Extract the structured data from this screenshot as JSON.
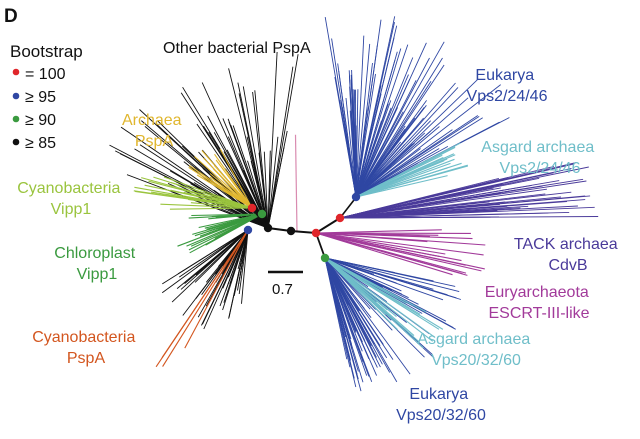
{
  "panel_letter": "D",
  "legend": {
    "title": "Bootstrap",
    "items": [
      {
        "label": "= 100",
        "color": "#e0262b"
      },
      {
        "label": "≥ 95",
        "color": "#2f47a3"
      },
      {
        "label": "≥ 90",
        "color": "#3a9a3f"
      },
      {
        "label": "≥ 85",
        "color": "#111111"
      }
    ]
  },
  "scale_bar": {
    "label": "0.7"
  },
  "clades": {
    "other_bacterial": {
      "line1": "Other bacterial PspA",
      "color": "#111111"
    },
    "archaea_pspa": {
      "line1": "Archaea",
      "line2": "PspA",
      "color": "#e0b62e"
    },
    "cyano_vipp1": {
      "line1": "Cyanobacteria",
      "line2": "Vipp1",
      "color": "#9ac43e"
    },
    "chloroplast_vipp1": {
      "line1": "Chloroplast",
      "line2": "Vipp1",
      "color": "#3a9a3f"
    },
    "cyano_pspa": {
      "line1": "Cyanobacteria",
      "line2": "PspA",
      "color": "#d3561f"
    },
    "eukarya_vps2": {
      "line1": "Eukarya",
      "line2": "Vps2/24/46",
      "color": "#2f47a3"
    },
    "asgard_vps2": {
      "line1": "Asgard archaea",
      "line2": "Vps2/24/46",
      "color": "#6fbec9"
    },
    "tack_cdvb": {
      "line1": "TACK archaea",
      "line2": "CdvB",
      "color": "#4a3a9a"
    },
    "eury_escrt": {
      "line1": "Euryarchaeota",
      "line2": "ESCRT-III-like",
      "color": "#a23a9a"
    },
    "asgard_vps20": {
      "line1": "Asgard archaea",
      "line2": "Vps20/32/60",
      "color": "#6fbec9"
    },
    "eukarya_vps20": {
      "line1": "Eukarya",
      "line2": "Vps20/32/60",
      "color": "#2f47a3"
    }
  },
  "extra_colors": {
    "pink_branch": "#d98bb0"
  }
}
